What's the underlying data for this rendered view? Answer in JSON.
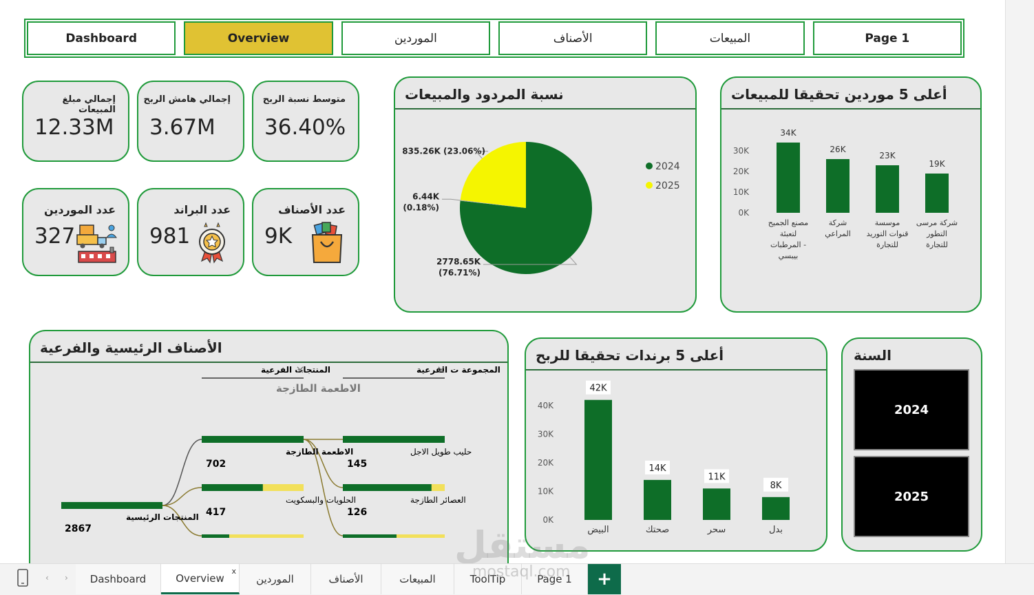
{
  "nav": {
    "buttons": [
      {
        "label": "Dashboard"
      },
      {
        "label": "Overview"
      },
      {
        "label": "الموردين"
      },
      {
        "label": "الأصناف"
      },
      {
        "label": "المبيعات"
      },
      {
        "label": "Page 1"
      }
    ]
  },
  "kpis": {
    "total_sales": {
      "label": "إجمالي مبلغ المبيعات",
      "value": "12.33M"
    },
    "total_margin": {
      "label": "إجمالي هامش الربح",
      "value": "3.67M"
    },
    "avg_margin": {
      "label": "متوسط نسبة الربح",
      "value": "36.40%"
    },
    "suppliers": {
      "label": "عدد الموردين",
      "value": "327",
      "icon": "supplier-truck-icon"
    },
    "brands": {
      "label": "عدد البراند",
      "value": "981",
      "icon": "brand-badge-icon"
    },
    "categories": {
      "label": "عدد الأصناف",
      "value": "9K",
      "icon": "shopping-bag-icon"
    }
  },
  "colors": {
    "accent": "#1f9a3a",
    "bar": "#0e6e28",
    "yellow": "#f5f500",
    "active_nav": "#e0c233",
    "panel_bg": "#e8e8e8"
  },
  "pie_panel": {
    "title": "نسبة المردود والمبيعات"
  },
  "suppliers_panel": {
    "title": "أعلى 5 موردين تحقيقا للمبيعات"
  },
  "brands_panel": {
    "title": "أعلى 5 برندات تحقيقا للربح"
  },
  "tree_panel": {
    "title": "الأصناف الرئيسية والفرعية",
    "filter1_label": "المنتجات الفرعية",
    "filter1_value": "الاطعمة الطازجة",
    "filter2_label": "المجموعة ت الفرعية",
    "close_glyph": "×",
    "root": {
      "label": "المنتجات الرئيسية",
      "value": "2867"
    },
    "level1": [
      {
        "label": "الاطعمة الطازجة",
        "value": "702",
        "fill": 1.0
      },
      {
        "label": "الحلويات والبسكويت",
        "value": "417",
        "fill": 0.6
      }
    ],
    "level2": [
      {
        "label": "حليب طويل الاجل",
        "value": "145",
        "fill": 1.0
      },
      {
        "label": "العصائر الطازجة",
        "value": "126",
        "fill": 0.87
      }
    ]
  },
  "year_panel": {
    "title": "السنة",
    "years": [
      "2024",
      "2025"
    ]
  },
  "chart_data": [
    {
      "type": "pie",
      "title": "نسبة المردود والمبيعات",
      "legend": [
        "2024",
        "2025"
      ],
      "legend_position": "right",
      "slices": [
        {
          "name": "2024",
          "value": 2778.65,
          "label": "2778.65K",
          "pct_label": "(76.71%)",
          "color": "#0e6e28"
        },
        {
          "name": "2025",
          "value": 835.26,
          "label": "835.26K (23.06%)",
          "pct_label": "",
          "color": "#f5f500"
        },
        {
          "name": "",
          "value": 6.44,
          "label": "6.44K",
          "pct_label": "(0.18%)",
          "color": "#b0b0b0"
        }
      ]
    },
    {
      "type": "bar",
      "title": "أعلى 5 موردين تحقيقا للمبيعات",
      "categories": [
        [
          "مصنع الجميح",
          "لتعبئة",
          "المرطبات -",
          "بيبسي"
        ],
        [
          "شركة",
          "المراعي"
        ],
        [
          "موسسة",
          "قنوات التوريد",
          "للتجارة"
        ],
        [
          "شركة مرسى",
          "التطور",
          "للتجارة"
        ]
      ],
      "values": [
        34,
        26,
        23,
        19
      ],
      "data_labels": [
        "34K",
        "26K",
        "23K",
        "19K"
      ],
      "y_ticks": [
        "0K",
        "10K",
        "20K",
        "30K"
      ],
      "ylim": [
        0,
        30
      ],
      "grid": false
    },
    {
      "type": "bar",
      "title": "أعلى 5 برندات تحقيقا للربح",
      "categories": [
        "البيض",
        "صحتك",
        "سحر",
        "بدل"
      ],
      "values": [
        42,
        14,
        11,
        8
      ],
      "data_labels": [
        "42K",
        "14K",
        "11K",
        "8K"
      ],
      "y_ticks": [
        "0K",
        "10K",
        "20K",
        "30K",
        "40K"
      ],
      "ylim": [
        0,
        40
      ],
      "grid": false
    }
  ],
  "tabbar": {
    "tabs": [
      "Dashboard",
      "Overview",
      "الموردين",
      "الأصناف",
      "المبيعات",
      "ToolTip",
      "Page 1"
    ],
    "close_glyph": "x",
    "add_glyph": "+"
  },
  "watermark": {
    "text": "مستقل",
    "sub": "mostaql.com"
  }
}
